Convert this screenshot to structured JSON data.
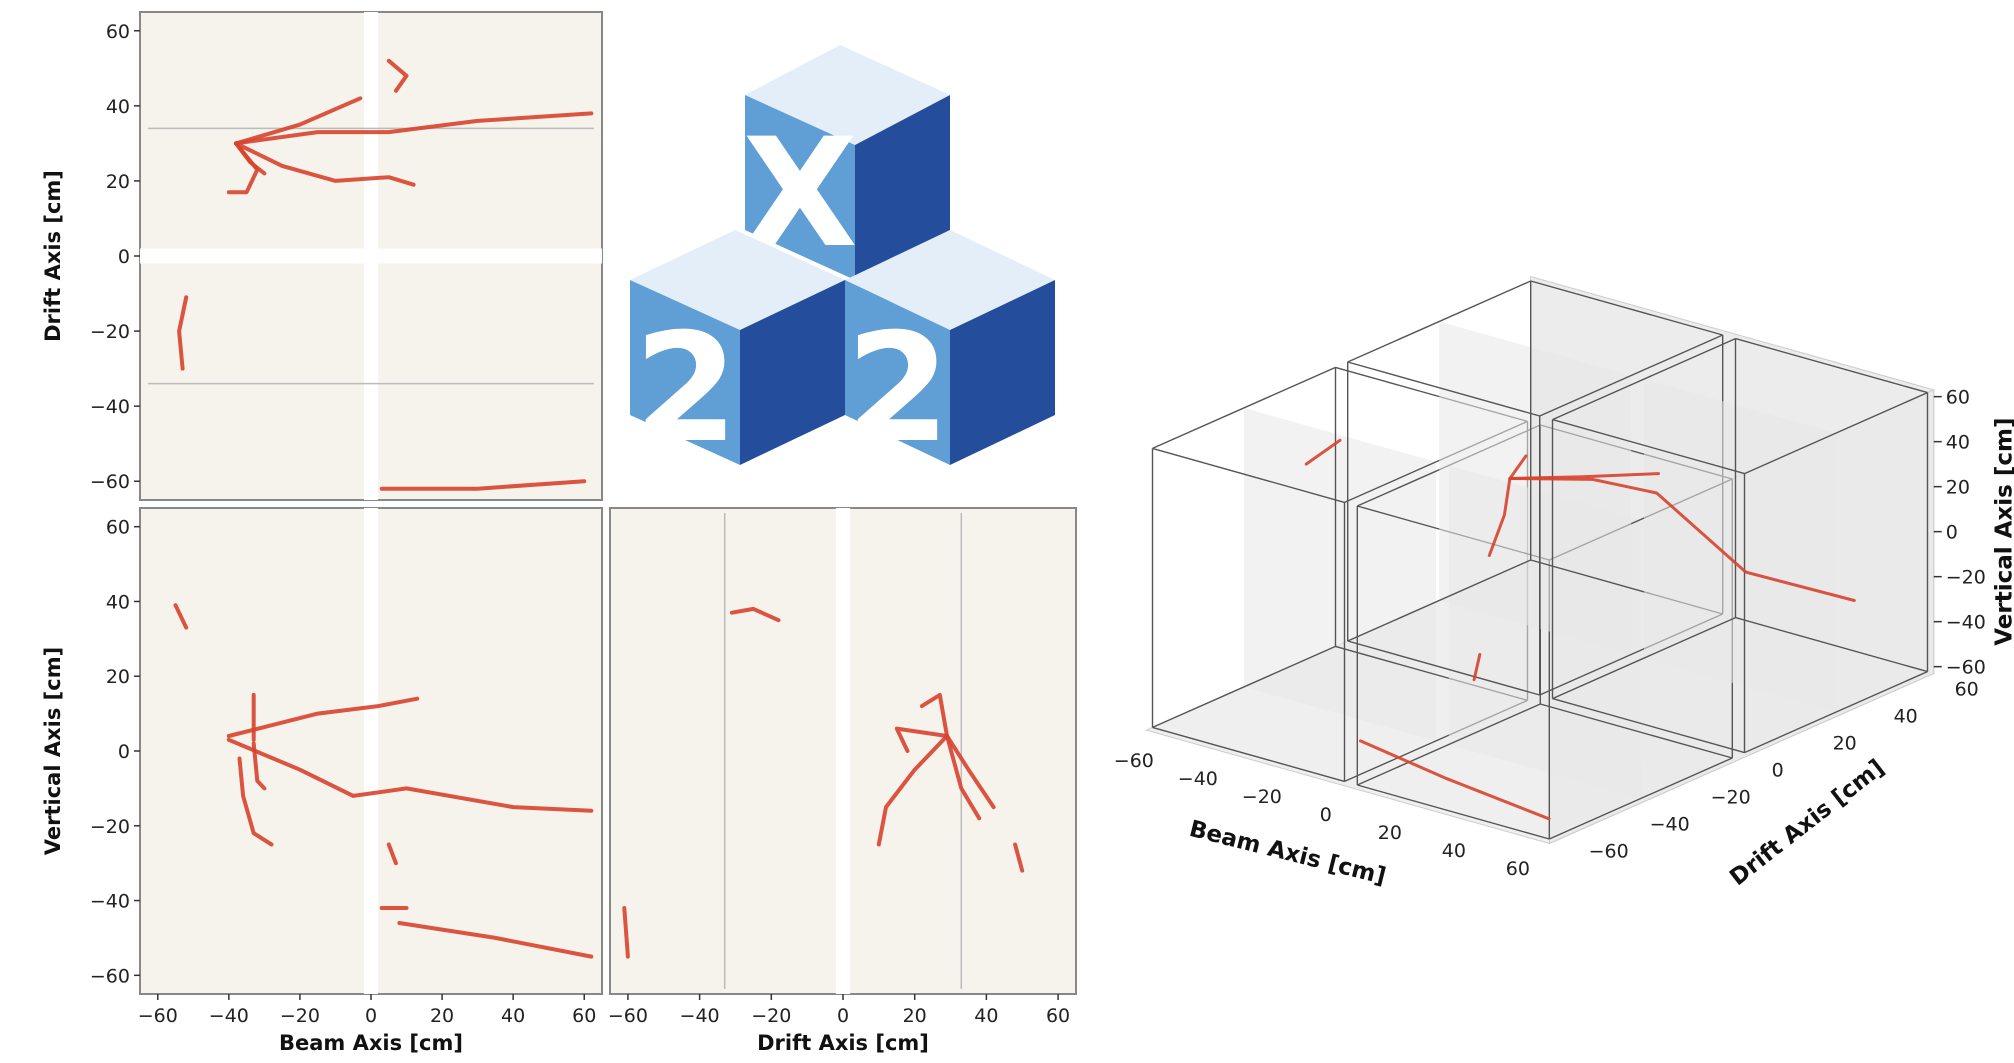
{
  "colors": {
    "panel_bg": "#f6f3ec",
    "track": "#d8432e",
    "track_dark": "#8a1e20",
    "logo_light": "#e4eef8",
    "logo_mid": "#5f9fd6",
    "logo_dark": "#244e9b",
    "box_line": "#555555",
    "face": "#e8e8e8"
  },
  "logo": {
    "top_letter": "X",
    "left_digit": "2",
    "right_digit": "2"
  },
  "chart_data": [
    {
      "type": "scatter",
      "panel": "top-left",
      "xlabel": "",
      "ylabel": "Drift Axis [cm]",
      "xlim": [
        -65,
        65
      ],
      "ylim": [
        -65,
        65
      ],
      "yticks": [
        "60",
        "40",
        "20",
        "0",
        "−20",
        "−40",
        "−60"
      ],
      "tracks": [
        {
          "points": [
            [
              -38,
              30
            ],
            [
              -20,
              35
            ],
            [
              -3,
              42
            ]
          ]
        },
        {
          "points": [
            [
              -38,
              30
            ],
            [
              -15,
              33
            ],
            [
              5,
              33
            ],
            [
              30,
              36
            ],
            [
              62,
              38
            ]
          ]
        },
        {
          "points": [
            [
              -38,
              30
            ],
            [
              -25,
              24
            ],
            [
              -10,
              20
            ],
            [
              5,
              21
            ],
            [
              12,
              19
            ]
          ]
        },
        {
          "points": [
            [
              -38,
              30
            ],
            [
              -32,
              23
            ],
            [
              -35,
              17
            ],
            [
              -40,
              17
            ]
          ]
        },
        {
          "points": [
            [
              -38,
              30
            ],
            [
              -34,
              25
            ],
            [
              -30,
              22
            ]
          ]
        },
        {
          "points": [
            [
              5,
              52
            ],
            [
              10,
              48
            ],
            [
              7,
              44
            ]
          ]
        },
        {
          "points": [
            [
              -52,
              -11
            ],
            [
              -54,
              -20
            ],
            [
              -53,
              -30
            ]
          ]
        },
        {
          "points": [
            [
              3,
              -62
            ],
            [
              30,
              -62
            ],
            [
              60,
              -60
            ]
          ]
        }
      ]
    },
    {
      "type": "scatter",
      "panel": "bottom-left",
      "xlabel": "Beam Axis [cm]",
      "ylabel": "Vertical Axis [cm]",
      "xlim": [
        -65,
        65
      ],
      "ylim": [
        -65,
        65
      ],
      "xticks": [
        "−60",
        "−40",
        "−20",
        "0",
        "20",
        "40",
        "60"
      ],
      "yticks": [
        "60",
        "40",
        "20",
        "0",
        "−20",
        "−40",
        "−60"
      ],
      "tracks": [
        {
          "points": [
            [
              -40,
              4
            ],
            [
              -15,
              10
            ],
            [
              2,
              12
            ],
            [
              13,
              14
            ]
          ]
        },
        {
          "points": [
            [
              -40,
              3
            ],
            [
              -20,
              -5
            ],
            [
              -5,
              -12
            ],
            [
              10,
              -10
            ],
            [
              40,
              -15
            ],
            [
              62,
              -16
            ]
          ]
        },
        {
          "points": [
            [
              -33,
              2
            ],
            [
              -32,
              -8
            ],
            [
              -30,
              -10
            ]
          ]
        },
        {
          "points": [
            [
              -33,
              3
            ],
            [
              -33,
              15
            ]
          ]
        },
        {
          "points": [
            [
              -37,
              -2
            ],
            [
              -36,
              -12
            ],
            [
              -33,
              -22
            ],
            [
              -28,
              -25
            ]
          ]
        },
        {
          "points": [
            [
              -55,
              39
            ],
            [
              -52,
              33
            ]
          ]
        },
        {
          "points": [
            [
              5,
              -25
            ],
            [
              7,
              -30
            ]
          ]
        },
        {
          "points": [
            [
              3,
              -42
            ],
            [
              10,
              -42
            ]
          ]
        },
        {
          "points": [
            [
              8,
              -46
            ],
            [
              35,
              -50
            ],
            [
              62,
              -55
            ]
          ]
        }
      ]
    },
    {
      "type": "scatter",
      "panel": "bottom-middle",
      "xlabel": "Drift Axis [cm]",
      "ylabel": "",
      "xlim": [
        -65,
        65
      ],
      "ylim": [
        -65,
        65
      ],
      "xticks": [
        "−60",
        "−40",
        "−20",
        "0",
        "20",
        "40",
        "60"
      ],
      "tracks": [
        {
          "points": [
            [
              -31,
              37
            ],
            [
              -25,
              38
            ],
            [
              -18,
              35
            ]
          ]
        },
        {
          "points": [
            [
              29,
              4
            ],
            [
              20,
              -5
            ],
            [
              12,
              -15
            ],
            [
              10,
              -25
            ]
          ]
        },
        {
          "points": [
            [
              29,
              4
            ],
            [
              33,
              -10
            ],
            [
              38,
              -18
            ]
          ]
        },
        {
          "points": [
            [
              29,
              4
            ],
            [
              27,
              15
            ],
            [
              22,
              12
            ]
          ]
        },
        {
          "points": [
            [
              29,
              4
            ],
            [
              15,
              6
            ],
            [
              18,
              0
            ]
          ]
        },
        {
          "points": [
            [
              29,
              4
            ],
            [
              35,
              -5
            ],
            [
              42,
              -15
            ]
          ]
        },
        {
          "points": [
            [
              -61,
              -42
            ],
            [
              -60,
              -55
            ]
          ]
        },
        {
          "points": [
            [
              48,
              -25
            ],
            [
              50,
              -32
            ]
          ]
        }
      ]
    },
    {
      "type": "scatter",
      "panel": "3d",
      "xlabel": "Beam Axis [cm]",
      "ylabel": "Drift Axis [cm]",
      "zlabel": "Vertical Axis [cm]",
      "xticks": [
        "−60",
        "−40",
        "−20",
        "0",
        "20",
        "40",
        "60"
      ],
      "yticks": [
        "60",
        "40",
        "20",
        "0",
        "−20",
        "−40",
        "−60"
      ],
      "zticks": [
        "60",
        "40",
        "20",
        "0",
        "−20",
        "−40",
        "−60"
      ]
    }
  ]
}
